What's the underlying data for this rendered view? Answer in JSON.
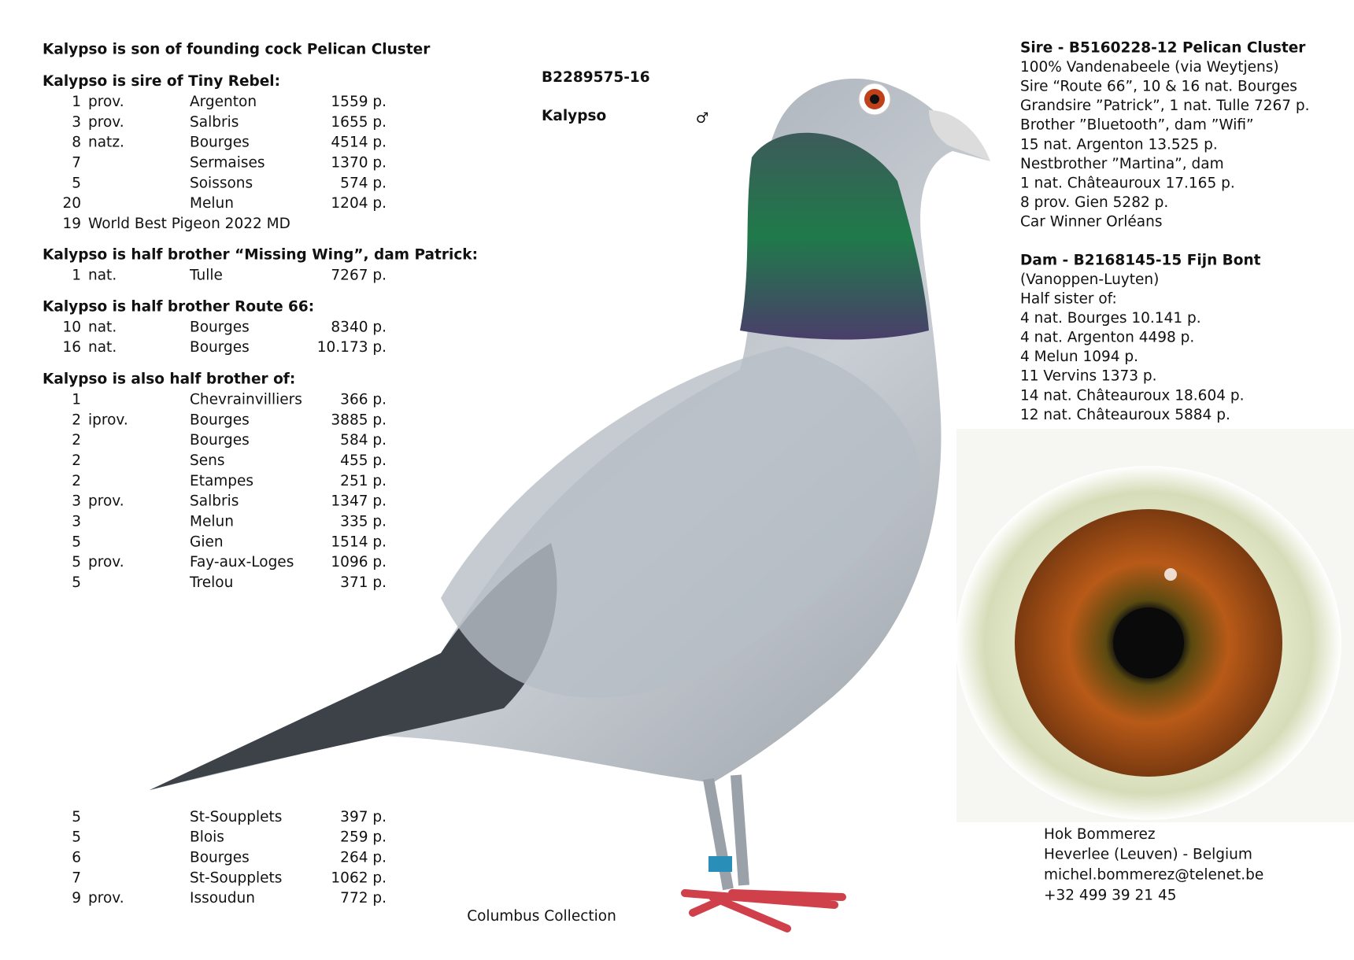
{
  "intro": "Kalypso is son of founding cock Pelican Cluster",
  "sections": [
    {
      "heading": "Kalypso is sire of Tiny Rebel:",
      "rows": [
        {
          "place": "1",
          "rank": "prov.",
          "race": "Argenton",
          "points": "1559 p."
        },
        {
          "place": "3",
          "rank": "prov.",
          "race": "Salbris",
          "points": "1655 p."
        },
        {
          "place": "8",
          "rank": "natz.",
          "race": "Bourges",
          "points": "4514 p."
        },
        {
          "place": "7",
          "race": "Sermaises",
          "points": "1370 p."
        },
        {
          "place": "5",
          "race": "Soissons",
          "points": "574 p."
        },
        {
          "place": "20",
          "race": "Melun",
          "points": "1204 p."
        },
        {
          "place": "19",
          "rank": "World Best Pigeon 2022 MD"
        }
      ]
    },
    {
      "heading": "Kalypso is half brother “Missing Wing”, dam Patrick:",
      "rows": [
        {
          "place": "1",
          "rank": "nat.",
          "race": "Tulle",
          "points": "7267 p."
        }
      ]
    },
    {
      "heading": "Kalypso is half brother Route 66:",
      "rows": [
        {
          "place": "10",
          "rank": "nat.",
          "race": "Bourges",
          "points": "8340 p."
        },
        {
          "place": "16",
          "rank": "nat.",
          "race": "Bourges",
          "points": "10.173 p."
        }
      ]
    },
    {
      "heading": "Kalypso is also half brother of:",
      "rows": [
        {
          "place": "1",
          "race": "Chevrainvilliers",
          "points": "366 p."
        },
        {
          "place": "2",
          "rank": "iprov.",
          "race": "Bourges",
          "points": "3885 p."
        },
        {
          "place": "2",
          "race": "Bourges",
          "points": "584 p."
        },
        {
          "place": "2",
          "race": "Sens",
          "points": "455 p."
        },
        {
          "place": "2",
          "race": "Etampes",
          "points": "251 p."
        },
        {
          "place": "3",
          "rank": "prov.",
          "race": "Salbris",
          "points": "1347 p."
        },
        {
          "place": "3",
          "race": "Melun",
          "points": "335 p."
        },
        {
          "place": "5",
          "race": "Gien",
          "points": "1514 p."
        },
        {
          "place": "5",
          "rank": "prov.",
          "race": "Fay-aux-Loges",
          "points": "1096 p."
        },
        {
          "place": "5",
          "race": "Trelou",
          "points": "371 p."
        }
      ]
    }
  ],
  "continued_rows": [
    {
      "place": "5",
      "race": "St-Soupplets",
      "points": "397 p."
    },
    {
      "place": "5",
      "race": "Blois",
      "points": "259 p."
    },
    {
      "place": "6",
      "race": "Bourges",
      "points": "264 p."
    },
    {
      "place": "7",
      "race": "St-Soupplets",
      "points": "1062 p."
    },
    {
      "place": "9",
      "rank": "prov.",
      "race": "Issoudun",
      "points": "772 p."
    }
  ],
  "ring": "B2289575-16",
  "name": "Kalypso",
  "sex": "♂",
  "sire": {
    "heading": "Sire - B5160228-12 Pelican Cluster",
    "lines": [
      "100% Vandenabeele (via Weytjens)",
      "Sire “Route 66”, 10 & 16 nat. Bourges",
      "Grandsire ”Patrick”, 1 nat. Tulle 7267 p.",
      "Brother ”Bluetooth”, dam ”Wifi”",
      "15 nat.   Argenton 13.525 p.",
      "Nestbrother ”Martina”, dam",
      "1 nat. Châteauroux 17.165 p.",
      "8 prov. Gien 5282 p.",
      "Car Winner Orléans"
    ]
  },
  "dam": {
    "heading": "Dam - B2168145-15 Fijn Bont",
    "lines": [
      "(Vanoppen-Luyten)",
      "Half sister of:",
      "4 nat. Bourges 10.141 p.",
      "4 nat. Argenton 4498 p.",
      "4 Melun 1094 p.",
      "11 Vervins 1373 p.",
      "14 nat. Châteauroux 18.604 p.",
      "12 nat. Châteauroux 5884 p."
    ]
  },
  "contact": [
    "Hok Bommerez",
    "Heverlee (Leuven) - Belgium",
    "michel.bommerez@telenet.be",
    "+32 499 39 21 45"
  ],
  "credit": "Columbus Collection"
}
